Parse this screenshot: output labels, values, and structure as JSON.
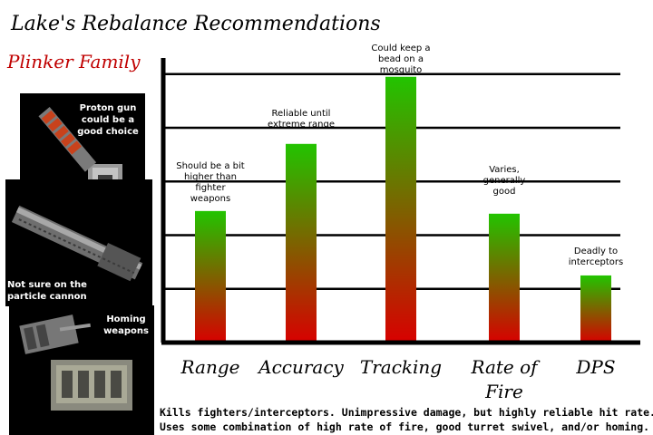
{
  "header": {
    "title": "Lake's Rebalance Recommendations",
    "subtitle": "Plinker Family"
  },
  "panels": [
    {
      "label": "Proton gun could be a good choice",
      "icon": "turret-icon"
    },
    {
      "label": "Not sure on the particle cannon",
      "icon": "particle-cannon-icon"
    },
    {
      "label": "Homing weapons",
      "icon": "homing-launcher-icon"
    }
  ],
  "chart_data": {
    "type": "bar",
    "categories": [
      "Range",
      "Accuracy",
      "Tracking",
      "Rate of Fire",
      "DPS"
    ],
    "values": [
      2.45,
      3.7,
      4.95,
      2.4,
      1.25
    ],
    "ylim": [
      0,
      5.3
    ],
    "grid": true,
    "bar_gradient": {
      "top": "#22c400",
      "bottom": "#d80000"
    },
    "annotations": [
      "Should be a bit higher than fighter weapons",
      "Reliable until extreme range",
      "Could keep a bead on a mosquito",
      "Varies, generally good",
      "Deadly to interceptors"
    ]
  },
  "summary": {
    "line1": "Kills fighters/interceptors. Unimpressive damage, but highly reliable hit rate.",
    "line2": "Uses some combination of high rate of fire, good turret swivel, and/or homing."
  }
}
